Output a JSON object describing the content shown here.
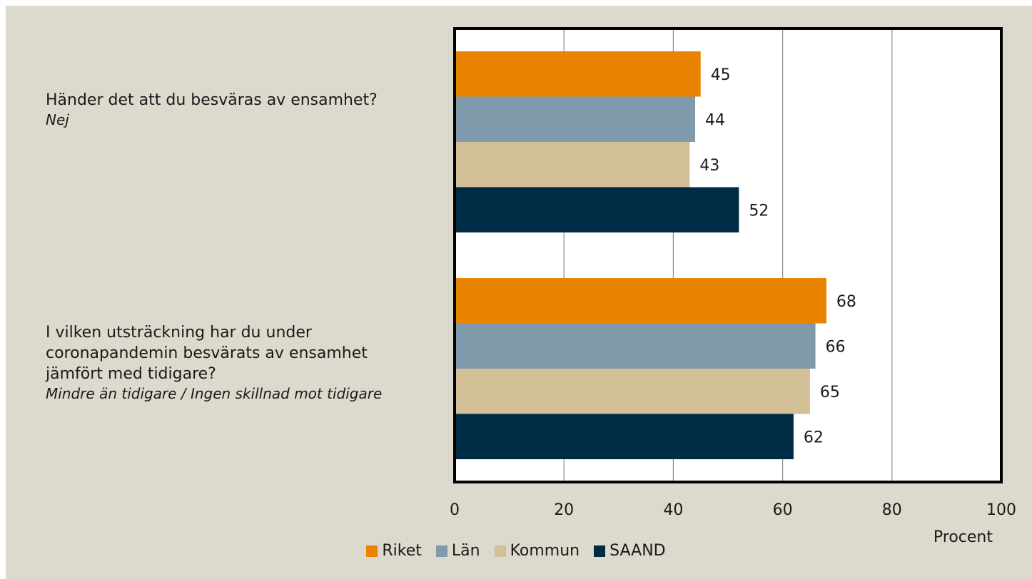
{
  "chart_data": {
    "type": "bar",
    "orientation": "horizontal",
    "categories": [
      {
        "question": "Händer det att du besväras av ensamhet?",
        "answer": "Nej"
      },
      {
        "question": "I vilken utsträckning har du under coronapandemin besvärats av ensamhet jämfört med tidigare?",
        "answer": "Mindre än tidigare / Ingen skillnad mot tidigare"
      }
    ],
    "series": [
      {
        "name": "Riket",
        "color": "#e98300",
        "values": [
          45,
          68
        ]
      },
      {
        "name": "Län",
        "color": "#7e9aab",
        "values": [
          44,
          66
        ]
      },
      {
        "name": "Kommun",
        "color": "#d3bf96",
        "values": [
          43,
          65
        ]
      },
      {
        "name": "SAAND",
        "color": "#002b45",
        "values": [
          52,
          62
        ]
      }
    ],
    "xlabel": "Procent",
    "xlim": [
      0,
      100
    ],
    "xticks": [
      0,
      20,
      40,
      60,
      80,
      100
    ],
    "grid": true,
    "legend": "bottom",
    "data_labels": true
  }
}
